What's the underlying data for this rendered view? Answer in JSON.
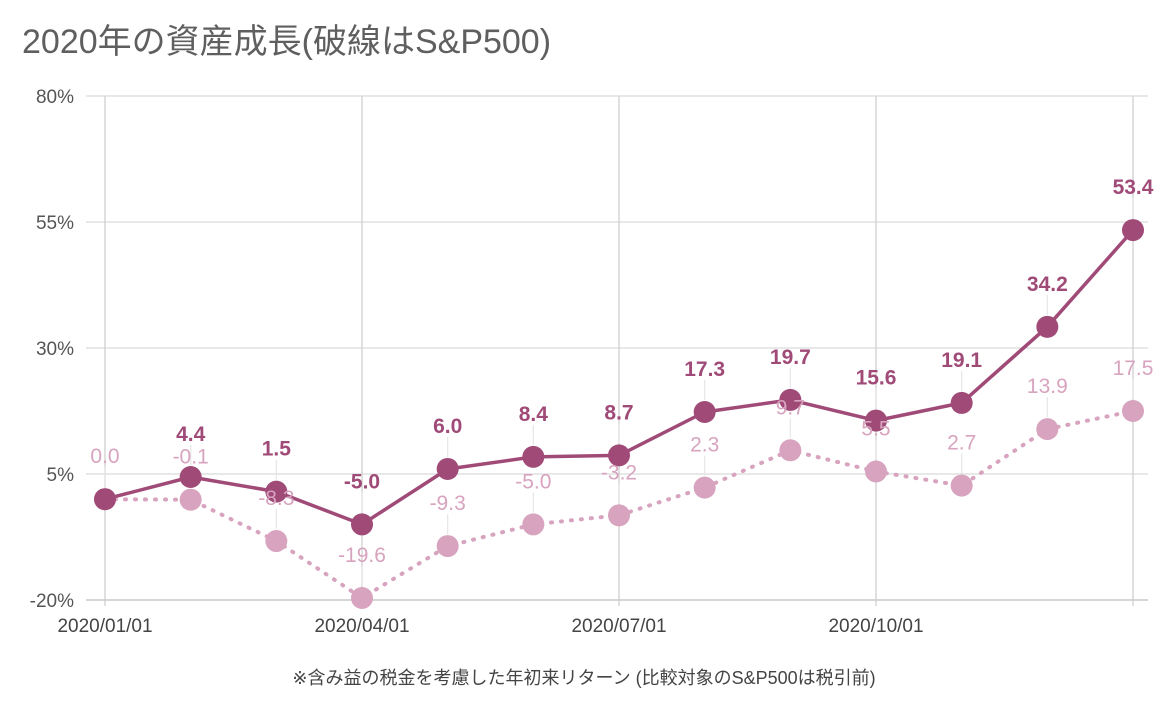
{
  "chart_data": {
    "type": "line",
    "title": "2020年の資産成長(破線はS&P500)",
    "footnote": "※含み益の税金を考慮した年初来リターン (比較対象のS&P500は税引前)",
    "x": [
      "2020/01/01",
      "2020/02/01",
      "2020/03/01",
      "2020/04/01",
      "2020/05/01",
      "2020/06/01",
      "2020/07/01",
      "2020/08/01",
      "2020/09/01",
      "2020/10/01",
      "2020/11/01",
      "2020/12/01",
      "2020/12/31"
    ],
    "xticks": [
      "2020/01/01",
      "2020/04/01",
      "2020/07/01",
      "2020/10/01"
    ],
    "yticks": [
      "80%",
      "55%",
      "30%",
      "5%",
      "-20%"
    ],
    "ylim": [
      -20,
      80
    ],
    "grid": true,
    "series": [
      {
        "style": "solid",
        "color": "#a04a78",
        "values": [
          0.0,
          4.4,
          1.5,
          -5.0,
          6.0,
          8.4,
          8.7,
          17.3,
          19.7,
          15.6,
          19.1,
          34.2,
          53.4
        ],
        "labels": [
          "",
          "4.4",
          "1.5",
          "-5.0",
          "6.0",
          "8.4",
          "8.7",
          "17.3",
          "19.7",
          "15.6",
          "19.1",
          "34.2",
          "53.4"
        ]
      },
      {
        "style": "dotted",
        "color": "#d7a3be",
        "values": [
          0.0,
          -0.1,
          -8.3,
          -19.6,
          -9.3,
          -5.0,
          -3.2,
          2.3,
          9.7,
          5.5,
          2.7,
          13.9,
          17.5
        ],
        "labels": [
          "0.0",
          "-0.1",
          "-8.3",
          "-19.6",
          "-9.3",
          "-5.0",
          "-3.2",
          "2.3",
          "9.7",
          "5.5",
          "2.7",
          "13.9",
          "17.5"
        ]
      }
    ]
  }
}
